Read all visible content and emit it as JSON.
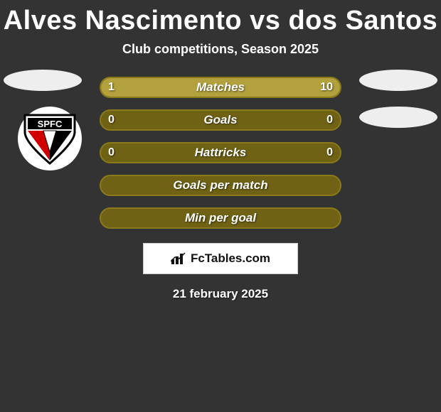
{
  "header": {
    "title": "Alves Nascimento vs dos Santos",
    "subtitle": "Club competitions, Season 2025"
  },
  "colors": {
    "bar_border": "#8a7a1a",
    "bar_empty": "#6f6215",
    "bar_left": "#b2a13c",
    "bar_right": "#b2a13c",
    "text": "#ffffff",
    "avatar_bg": "#eeeeee",
    "page_bg": "#333333"
  },
  "stats": [
    {
      "label": "Matches",
      "left_val": "1",
      "right_val": "10",
      "left_pct": 9,
      "right_pct": 91
    },
    {
      "label": "Goals",
      "left_val": "0",
      "right_val": "0",
      "left_pct": 0,
      "right_pct": 0
    },
    {
      "label": "Hattricks",
      "left_val": "0",
      "right_val": "0",
      "left_pct": 0,
      "right_pct": 0
    },
    {
      "label": "Goals per match",
      "left_val": "",
      "right_val": "",
      "left_pct": 0,
      "right_pct": 0
    },
    {
      "label": "Min per goal",
      "left_val": "",
      "right_val": "",
      "left_pct": 0,
      "right_pct": 0
    }
  ],
  "brand": {
    "text": "FcTables.com"
  },
  "date": "21 february 2025",
  "left_club_badge": {
    "top_text": "SPFC",
    "top_bg": "#000000",
    "tri_colors": [
      "#d00000",
      "#ffffff",
      "#000000"
    ]
  }
}
